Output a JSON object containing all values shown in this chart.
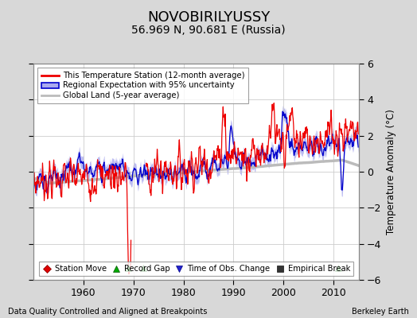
{
  "title": "NOVOBIRILYUSSY",
  "subtitle": "56.969 N, 90.681 E (Russia)",
  "ylabel": "Temperature Anomaly (°C)",
  "xlabel_bottom": "Data Quality Controlled and Aligned at Breakpoints",
  "xlabel_right": "Berkeley Earth",
  "ylim": [
    -6,
    6
  ],
  "xlim": [
    1950,
    2015
  ],
  "yticks": [
    -6,
    -4,
    -2,
    0,
    2,
    4,
    6
  ],
  "xticks": [
    1960,
    1970,
    1980,
    1990,
    2000,
    2010
  ],
  "bg_color": "#d8d8d8",
  "plot_bg_color": "#ffffff",
  "grid_color": "#cccccc",
  "title_fontsize": 13,
  "subtitle_fontsize": 10,
  "tick_fontsize": 9,
  "legend1_labels": [
    "This Temperature Station (12-month average)",
    "Regional Expectation with 95% uncertainty",
    "Global Land (5-year average)"
  ],
  "legend2_labels": [
    "Station Move",
    "Record Gap",
    "Time of Obs. Change",
    "Empirical Break"
  ],
  "red_line_color": "#ee0000",
  "blue_line_color": "#0000cc",
  "blue_fill_color": "#aaaaee",
  "gray_line_color": "#bbbbbb",
  "green_triangle_years": [
    1969,
    1972,
    2011
  ],
  "red_diamond_years": [],
  "blue_triangle_years": []
}
